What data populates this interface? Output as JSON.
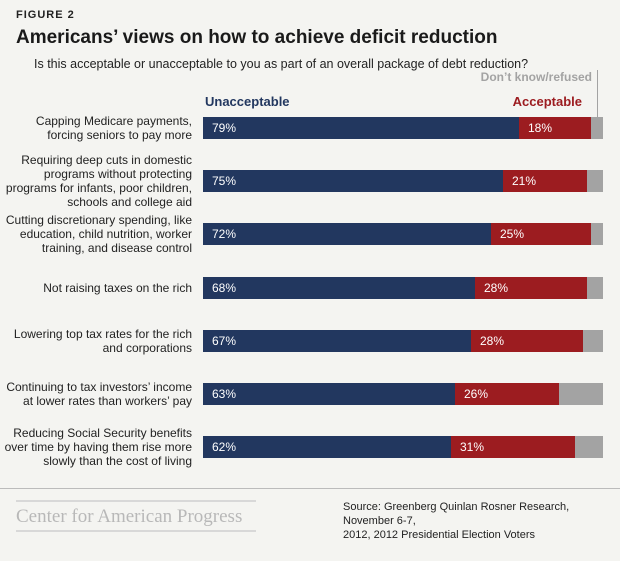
{
  "chart_data": {
    "type": "stacked-barh",
    "figure_label": "FIGURE 2",
    "title": "Americans’ views on how to achieve deficit reduction",
    "subtitle": "Is this acceptable or unacceptable to you as part of an overall package of debt reduction?",
    "categories": [
      "Capping Medicare payments,\nforcing seniors to pay more",
      "Requiring deep cuts in domestic\nprograms without protecting\nprograms for infants, poor children,\nschools and college aid",
      "Cutting discretionary spending, like\neducation, child nutrition, worker\ntraining, and disease control",
      "Not raising taxes on the rich",
      "Lowering top tax rates for the rich\nand corporations",
      "Continuing to tax investors’ income\nat lower rates than workers’ pay",
      "Reducing Social Security benefits\nover time by having them rise more\nslowly than the cost of living"
    ],
    "xlim": [
      0,
      100
    ],
    "series": [
      {
        "name": "Unacceptable",
        "color": "#22375f",
        "values": [
          79,
          75,
          72,
          68,
          67,
          63,
          62
        ],
        "value_labels": [
          "79%",
          "75%",
          "72%",
          "68%",
          "67%",
          "63%",
          "62%"
        ]
      },
      {
        "name": "Acceptable",
        "color": "#9c1c20",
        "values": [
          18,
          21,
          25,
          28,
          28,
          26,
          31
        ],
        "value_labels": [
          "18%",
          "21%",
          "25%",
          "28%",
          "28%",
          "26%",
          "31%"
        ]
      },
      {
        "name": "Don’t know/refused",
        "color": "#a3a3a3",
        "values": [
          3,
          4,
          3,
          4,
          5,
          11,
          7
        ]
      }
    ],
    "source": "Source: Greenberg Quinlan Rosner Research, November 6-7,\n2012, 2012 Presidential Election Voters",
    "logo": "Center for American Progress"
  }
}
